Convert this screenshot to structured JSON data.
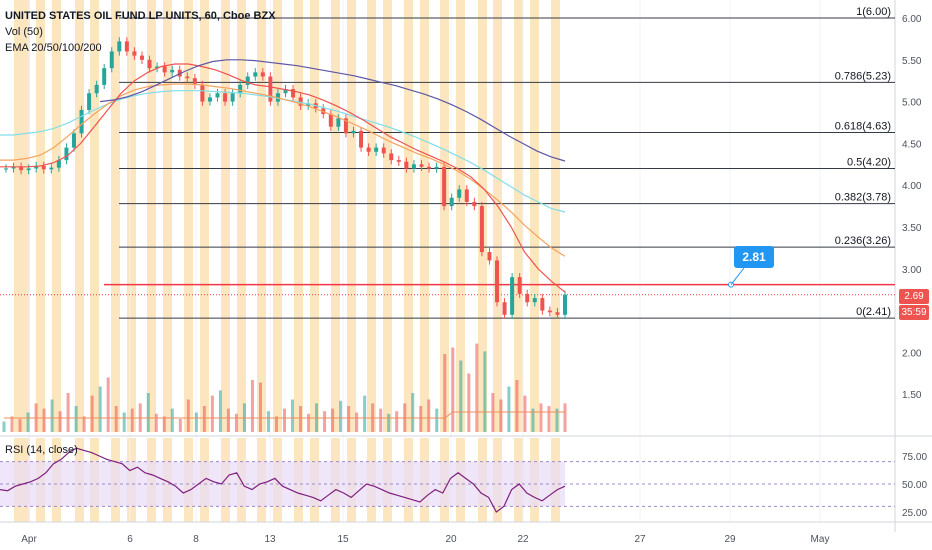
{
  "header": {
    "symbol_line": "UNITED STATES OIL FUND LP UNITS, 60, Cboe BZX",
    "vol_label": "Vol (50)",
    "ema_label": "EMA 20/50/100/200",
    "rsi_label": "RSI (14, close)"
  },
  "price_tag": {
    "price": "2.69",
    "countdown": "35:59",
    "color": "#ef5350"
  },
  "callout": {
    "value": "2.81",
    "color": "#2196f3"
  },
  "colors": {
    "up": "#26a69a",
    "down": "#ef5350",
    "session": "#fbe6bf",
    "ema20": "#ef5350",
    "ema50": "#f5a25d",
    "ema100": "#80deea",
    "ema200": "#5d57a3",
    "rsi": "#7e1f7e",
    "rsi_band": "#e9dcf7",
    "red_line": "#f23645"
  },
  "chart_data": [
    {
      "type": "line",
      "title": "UNITED STATES OIL FUND LP UNITS, 60, Cboe BZX",
      "x_ticks": [
        "Apr",
        "6",
        "8",
        "13",
        "15",
        "20",
        "22",
        "27",
        "29",
        "May"
      ],
      "y_ticks": [
        "6.00",
        "5.50",
        "5.00",
        "4.50",
        "4.00",
        "3.50",
        "3.00",
        "2.50",
        "2.00",
        "1.50"
      ],
      "ylim": [
        1.0,
        6.05
      ],
      "fib_levels": [
        {
          "label": "1(6.00)",
          "value": 6.0
        },
        {
          "label": "0.786(5.23)",
          "value": 5.23
        },
        {
          "label": "0.618(4.63)",
          "value": 4.63
        },
        {
          "label": "0.5(4.20)",
          "value": 4.2
        },
        {
          "label": "0.382(3.78)",
          "value": 3.78
        },
        {
          "label": "0.236(3.26)",
          "value": 3.26
        },
        {
          "label": "0(2.41)",
          "value": 2.41
        }
      ],
      "horizontal_line": 2.81,
      "last_price": 2.69,
      "close_series": [
        4.2,
        4.22,
        4.18,
        4.2,
        4.23,
        4.19,
        4.21,
        4.3,
        4.45,
        4.62,
        4.9,
        5.1,
        5.2,
        5.4,
        5.6,
        5.72,
        5.6,
        5.55,
        5.5,
        5.4,
        5.42,
        5.35,
        5.38,
        5.3,
        5.28,
        5.2,
        5.0,
        5.05,
        5.1,
        5.0,
        5.1,
        5.2,
        5.3,
        5.35,
        5.3,
        5.0,
        5.1,
        5.15,
        5.05,
        4.95,
        4.98,
        4.92,
        4.85,
        4.7,
        4.8,
        4.62,
        4.65,
        4.45,
        4.4,
        4.45,
        4.38,
        4.3,
        4.28,
        4.2,
        4.25,
        4.22,
        4.2,
        4.22,
        3.75,
        3.85,
        3.95,
        3.8,
        3.75,
        3.2,
        3.1,
        2.6,
        2.45,
        2.9,
        2.7,
        2.6,
        2.65,
        2.5,
        2.48,
        2.45,
        2.69
      ],
      "ema20": [
        4.22,
        4.22,
        4.22,
        4.23,
        4.27,
        4.35,
        4.5,
        4.7,
        4.9,
        5.1,
        5.25,
        5.35,
        5.42,
        5.45,
        5.45,
        5.42,
        5.38,
        5.32,
        5.25,
        5.2,
        5.18,
        5.15,
        5.12,
        5.08,
        5.02,
        4.95,
        4.87,
        4.78,
        4.68,
        4.58,
        4.5,
        4.42,
        4.35,
        4.28,
        4.2,
        4.1,
        3.95,
        3.75,
        3.5,
        3.2,
        3.0,
        2.85,
        2.72
      ],
      "ema50": [
        4.3,
        4.3,
        4.32,
        4.36,
        4.45,
        4.58,
        4.72,
        4.85,
        4.97,
        5.07,
        5.14,
        5.18,
        5.2,
        5.21,
        5.21,
        5.2,
        5.18,
        5.16,
        5.13,
        5.1,
        5.07,
        5.03,
        4.99,
        4.94,
        4.88,
        4.82,
        4.75,
        4.68,
        4.6,
        4.52,
        4.45,
        4.38,
        4.32,
        4.25,
        4.17,
        4.07,
        3.95,
        3.82,
        3.68,
        3.52,
        3.38,
        3.25,
        3.15
      ],
      "ema100": [
        4.6,
        4.6,
        4.62,
        4.64,
        4.68,
        4.74,
        4.82,
        4.9,
        4.97,
        5.03,
        5.07,
        5.1,
        5.12,
        5.13,
        5.13,
        5.13,
        5.12,
        5.11,
        5.1,
        5.08,
        5.06,
        5.03,
        5.0,
        4.97,
        4.93,
        4.89,
        4.84,
        4.79,
        4.74,
        4.69,
        4.63,
        4.57,
        4.5,
        4.43,
        4.35,
        4.27,
        4.18,
        4.08,
        3.98,
        3.88,
        3.8,
        3.72,
        3.68
      ],
      "ema200": [
        5.0,
        5.02,
        5.06,
        5.12,
        5.2,
        5.28,
        5.36,
        5.43,
        5.48,
        5.5,
        5.5,
        5.49,
        5.47,
        5.45,
        5.43,
        5.4,
        5.37,
        5.34,
        5.31,
        5.27,
        5.23,
        5.19,
        5.14,
        5.09,
        5.03,
        4.96,
        4.88,
        4.79,
        4.69,
        4.59,
        4.5,
        4.41,
        4.34,
        4.29
      ],
      "volume": [
        8,
        12,
        10,
        15,
        22,
        18,
        25,
        16,
        30,
        20,
        12,
        28,
        35,
        42,
        20,
        15,
        18,
        22,
        30,
        14,
        12,
        18,
        10,
        25,
        15,
        20,
        28,
        32,
        18,
        14,
        22,
        40,
        38,
        16,
        12,
        18,
        25,
        20,
        14,
        22,
        16,
        18,
        24,
        20,
        15,
        28,
        22,
        18,
        14,
        16,
        22,
        30,
        20,
        25,
        18,
        60,
        65,
        55,
        45,
        68,
        62,
        30,
        25,
        35,
        40,
        28,
        18,
        22,
        20,
        18,
        22
      ],
      "rsi": [
        45,
        44,
        48,
        50,
        52,
        55,
        60,
        68,
        72,
        78,
        82,
        80,
        78,
        75,
        72,
        70,
        68,
        62,
        65,
        60,
        58,
        55,
        52,
        48,
        42,
        45,
        50,
        55,
        52,
        50,
        58,
        60,
        48,
        45,
        50,
        52,
        55,
        48,
        45,
        42,
        40,
        38,
        35,
        40,
        45,
        42,
        38,
        44,
        50,
        48,
        45,
        42,
        40,
        38,
        36,
        34,
        40,
        45,
        42,
        55,
        60,
        55,
        50,
        42,
        38,
        25,
        30,
        45,
        50,
        42,
        38,
        35,
        40,
        45,
        48
      ]
    }
  ]
}
